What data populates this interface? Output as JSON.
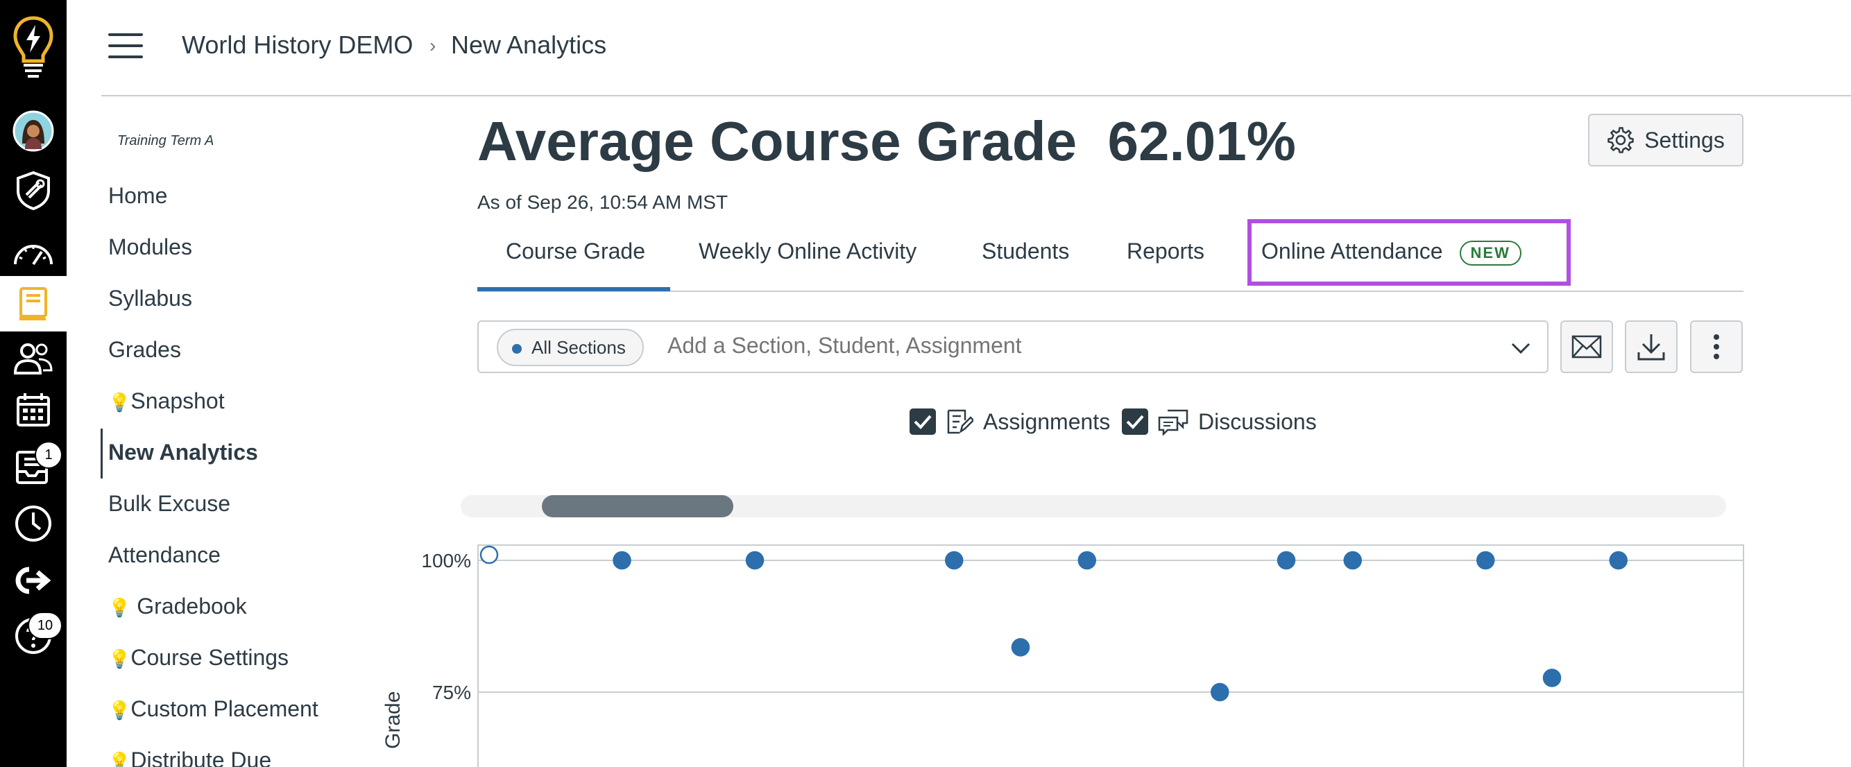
{
  "global_nav": {
    "items": [
      {
        "name": "logo-icon"
      },
      {
        "name": "account-avatar"
      },
      {
        "name": "admin-icon"
      },
      {
        "name": "dashboard-icon"
      },
      {
        "name": "courses-icon"
      },
      {
        "name": "groups-icon"
      },
      {
        "name": "calendar-icon"
      },
      {
        "name": "inbox-icon",
        "badge": "1"
      },
      {
        "name": "history-icon"
      },
      {
        "name": "commons-icon"
      },
      {
        "name": "help-icon",
        "badge": "10"
      }
    ]
  },
  "breadcrumb": {
    "course": "World History DEMO",
    "separator": "›",
    "page": "New Analytics"
  },
  "course_nav": {
    "term": "Training Term A",
    "items": [
      {
        "label": "Home",
        "bulb": false
      },
      {
        "label": "Modules",
        "bulb": false
      },
      {
        "label": "Syllabus",
        "bulb": false
      },
      {
        "label": "Grades",
        "bulb": false
      },
      {
        "label": "Snapshot",
        "bulb": true
      },
      {
        "label": "New Analytics",
        "bulb": false,
        "active": true
      },
      {
        "label": "Bulk Excuse",
        "bulb": false
      },
      {
        "label": "Attendance",
        "bulb": false
      },
      {
        "label": " Gradebook",
        "bulb": true
      },
      {
        "label": "Course Settings",
        "bulb": true
      },
      {
        "label": "Custom Placement",
        "bulb": true
      },
      {
        "label": "Distribute Due",
        "bulb": true
      }
    ]
  },
  "main": {
    "title": "Average Course Grade",
    "grade": "62.01%",
    "as_of": "As of Sep 26, 10:54 AM MST",
    "settings_label": "Settings",
    "tabs": [
      {
        "label": "Course Grade",
        "active": true
      },
      {
        "label": "Weekly Online Activity"
      },
      {
        "label": "Students"
      },
      {
        "label": "Reports"
      },
      {
        "label": "Online Attendance",
        "badge": "NEW"
      }
    ],
    "filter": {
      "chip": "All Sections",
      "placeholder": "Add a Section, Student, Assignment"
    },
    "toggles": [
      {
        "label": "Assignments",
        "checked": true
      },
      {
        "label": "Discussions",
        "checked": true
      }
    ]
  },
  "colors": {
    "accent": "#2d6fad",
    "highlight": "#b04fe0",
    "new_badge": "#2b7a3d",
    "text": "#2d3b45"
  },
  "chart_data": {
    "type": "scatter",
    "title": "",
    "xlabel": "",
    "ylabel": "Grade",
    "y_ticks": [
      "100%",
      "75%"
    ],
    "y_tick_values": [
      100,
      75
    ],
    "series": [
      {
        "values": [
          {
            "x": 0,
            "y": 100,
            "hollow": true
          },
          {
            "x": 1,
            "y": 100
          },
          {
            "x": 2,
            "y": 100
          },
          {
            "x": 3.5,
            "y": 100
          },
          {
            "x": 4,
            "y": 83.5
          },
          {
            "x": 4.5,
            "y": 100
          },
          {
            "x": 5.5,
            "y": 75
          },
          {
            "x": 6,
            "y": 100
          },
          {
            "x": 6.5,
            "y": 100
          },
          {
            "x": 7.5,
            "y": 100
          },
          {
            "x": 8,
            "y": 77.7
          },
          {
            "x": 8.5,
            "y": 100
          }
        ]
      }
    ],
    "grid": true
  }
}
